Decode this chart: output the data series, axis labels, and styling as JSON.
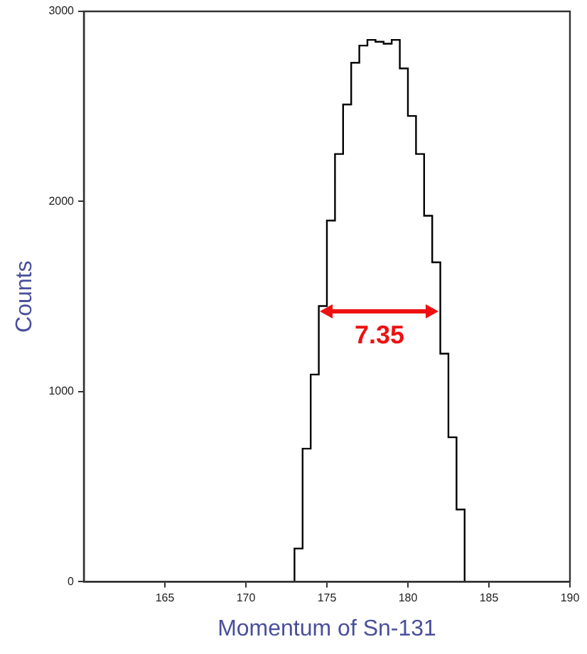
{
  "chart_data": {
    "type": "histogram",
    "xlabel": "Momentum of Sn-131",
    "ylabel": "Counts",
    "bins": [
      173,
      173.5,
      174,
      174.5,
      175,
      175.5,
      176,
      176.5,
      177,
      177.5,
      178,
      178.5,
      179,
      179.5,
      180,
      180.5,
      181,
      181.5,
      182,
      182.5,
      183,
      183.5
    ],
    "values": [
      175,
      700,
      1090,
      1450,
      1900,
      2250,
      2510,
      2730,
      2820,
      2850,
      2840,
      2830,
      2850,
      2700,
      2450,
      2250,
      1925,
      1680,
      1200,
      760,
      380
    ],
    "color": "#000000",
    "xlim": [
      160,
      190
    ],
    "xticks": [
      165,
      170,
      175,
      180,
      185,
      190
    ],
    "ylim": [
      0,
      3000
    ],
    "yticks": [
      0,
      1000,
      2000,
      3000
    ],
    "grid": false,
    "legend": false,
    "annotations": [
      "7.35"
    ]
  }
}
